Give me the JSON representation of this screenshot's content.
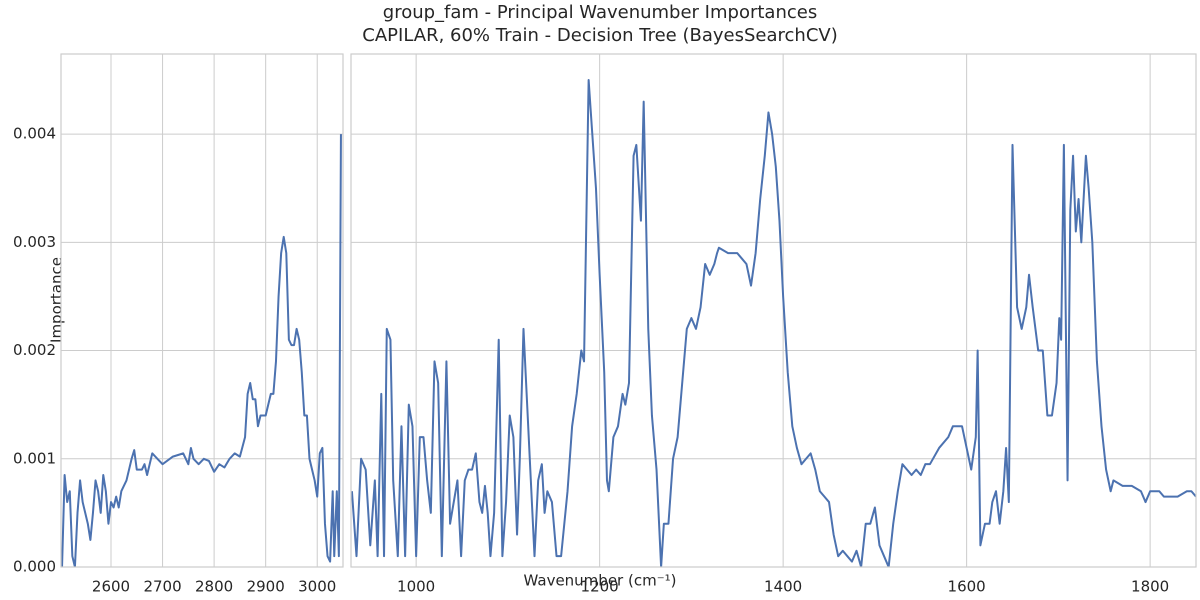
{
  "chart_data": [
    {
      "type": "line",
      "title": "group_fam - Principal Wavenumber Importances",
      "subtitle": "CAPILAR, 60% Train - Decision Tree (BayesSearchCV)",
      "y_label": "Importance",
      "xlim": [
        2503,
        3050
      ],
      "xticks": [
        2600,
        2700,
        2800,
        2900,
        3000
      ],
      "ylim": [
        0,
        0.00474
      ],
      "yticks": [
        {
          "value": 0,
          "label": "0.000"
        },
        0.001,
        0.002,
        0.003,
        0.004
      ],
      "grid": true,
      "series": [
        {
          "color": "#4c72b0",
          "x": [
            2505,
            2510,
            2515,
            2520,
            2525,
            2530,
            2535,
            2540,
            2545,
            2550,
            2555,
            2560,
            2565,
            2570,
            2575,
            2580,
            2585,
            2590,
            2595,
            2600,
            2605,
            2610,
            2615,
            2620,
            2630,
            2640,
            2645,
            2650,
            2660,
            2665,
            2670,
            2680,
            2690,
            2700,
            2720,
            2740,
            2750,
            2755,
            2760,
            2770,
            2780,
            2790,
            2800,
            2810,
            2820,
            2830,
            2840,
            2850,
            2860,
            2865,
            2870,
            2875,
            2880,
            2885,
            2890,
            2900,
            2910,
            2915,
            2920,
            2925,
            2930,
            2935,
            2940,
            2945,
            2950,
            2955,
            2960,
            2965,
            2970,
            2975,
            2980,
            2985,
            2990,
            2995,
            3000,
            3005,
            3010,
            3015,
            3020,
            3025,
            3030,
            3033,
            3038,
            3042,
            3046
          ],
          "values": [
            0,
            0.00085,
            0.0006,
            0.0007,
            0.0001,
            0,
            0.0005,
            0.0008,
            0.0006,
            0.0005,
            0.0004,
            0.00025,
            0.0005,
            0.0008,
            0.0007,
            0.0005,
            0.00085,
            0.0007,
            0.0004,
            0.0006,
            0.00055,
            0.00065,
            0.00055,
            0.0007,
            0.0008,
            0.001,
            0.00108,
            0.0009,
            0.0009,
            0.00095,
            0.00085,
            0.00105,
            0.001,
            0.00095,
            0.00102,
            0.00105,
            0.00095,
            0.0011,
            0.001,
            0.00095,
            0.001,
            0.00098,
            0.00088,
            0.00095,
            0.00092,
            0.001,
            0.00105,
            0.00102,
            0.0012,
            0.0016,
            0.0017,
            0.00155,
            0.00155,
            0.0013,
            0.0014,
            0.0014,
            0.0016,
            0.0016,
            0.0019,
            0.0025,
            0.0029,
            0.00305,
            0.0029,
            0.0021,
            0.00205,
            0.00205,
            0.0022,
            0.0021,
            0.0018,
            0.0014,
            0.0014,
            0.001,
            0.0009,
            0.0008,
            0.00065,
            0.00105,
            0.0011,
            0.0004,
            0.0001,
            5e-05,
            0.0007,
            0.0001,
            0.0007,
            0.0001,
            0.004
          ]
        }
      ]
    },
    {
      "type": "line",
      "x_label": "Wavenumber (cm⁻¹)",
      "xlim": [
        929,
        1850
      ],
      "xticks": [
        1000,
        1200,
        1400,
        1600,
        1800
      ],
      "ylim": [
        0,
        0.00474
      ],
      "grid": true,
      "series": [
        {
          "color": "#4c72b0",
          "x": [
            930,
            935,
            940,
            945,
            950,
            955,
            958,
            962,
            965,
            968,
            972,
            975,
            980,
            984,
            988,
            992,
            996,
            1000,
            1004,
            1008,
            1012,
            1016,
            1020,
            1024,
            1028,
            1033,
            1037,
            1041,
            1045,
            1049,
            1053,
            1057,
            1061,
            1065,
            1069,
            1072,
            1075,
            1078,
            1081,
            1085,
            1090,
            1094,
            1098,
            1102,
            1106,
            1110,
            1113,
            1117,
            1121,
            1125,
            1129,
            1133,
            1137,
            1140,
            1143,
            1148,
            1153,
            1158,
            1165,
            1170,
            1175,
            1180,
            1183,
            1188,
            1192,
            1196,
            1200,
            1205,
            1208,
            1210,
            1215,
            1220,
            1225,
            1228,
            1232,
            1237,
            1240,
            1245,
            1248,
            1253,
            1257,
            1262,
            1267,
            1270,
            1275,
            1280,
            1285,
            1290,
            1295,
            1300,
            1305,
            1310,
            1315,
            1320,
            1325,
            1328,
            1330,
            1340,
            1350,
            1355,
            1360,
            1365,
            1370,
            1375,
            1380,
            1384,
            1388,
            1392,
            1396,
            1400,
            1405,
            1410,
            1415,
            1420,
            1425,
            1430,
            1435,
            1440,
            1445,
            1450,
            1455,
            1460,
            1465,
            1470,
            1475,
            1480,
            1485,
            1490,
            1495,
            1500,
            1505,
            1510,
            1515,
            1520,
            1525,
            1530,
            1535,
            1540,
            1545,
            1550,
            1555,
            1560,
            1570,
            1580,
            1585,
            1590,
            1595,
            1600,
            1605,
            1610,
            1612,
            1615,
            1620,
            1625,
            1628,
            1632,
            1636,
            1640,
            1643,
            1646,
            1650,
            1655,
            1660,
            1665,
            1668,
            1672,
            1678,
            1683,
            1688,
            1693,
            1698,
            1701,
            1703,
            1706,
            1710,
            1713,
            1716,
            1719,
            1722,
            1725,
            1730,
            1733,
            1737,
            1742,
            1747,
            1752,
            1757,
            1760,
            1770,
            1780,
            1790,
            1795,
            1800,
            1805,
            1810,
            1815,
            1820,
            1830,
            1840,
            1845,
            1850
          ],
          "values": [
            0.0007,
            0.0001,
            0.001,
            0.0009,
            0.0002,
            0.0008,
            0.0001,
            0.0016,
            0.0001,
            0.0022,
            0.0021,
            0.0008,
            0.0001,
            0.0013,
            0.0001,
            0.0015,
            0.0013,
            0.0001,
            0.0012,
            0.0012,
            0.0008,
            0.0005,
            0.0019,
            0.0017,
            0.0001,
            0.0019,
            0.0004,
            0.0006,
            0.0008,
            0.0001,
            0.0008,
            0.0009,
            0.0009,
            0.00105,
            0.0006,
            0.0005,
            0.00075,
            0.0005,
            0.0001,
            0.0005,
            0.0021,
            0.0001,
            0.0006,
            0.0014,
            0.0012,
            0.0003,
            0.001,
            0.0022,
            0.0015,
            0.0008,
            0.0001,
            0.0008,
            0.00095,
            0.0005,
            0.0007,
            0.0006,
            0.0001,
            0.0001,
            0.0007,
            0.0013,
            0.0016,
            0.002,
            0.0019,
            0.0045,
            0.004,
            0.0035,
            0.0027,
            0.0018,
            0.0008,
            0.0007,
            0.0012,
            0.0013,
            0.0016,
            0.0015,
            0.0017,
            0.0038,
            0.0039,
            0.0032,
            0.0043,
            0.0022,
            0.0014,
            0.0009,
            0,
            0.0004,
            0.0004,
            0.001,
            0.0012,
            0.0017,
            0.0022,
            0.0023,
            0.0022,
            0.0024,
            0.0028,
            0.0027,
            0.0028,
            0.0029,
            0.00295,
            0.0029,
            0.0029,
            0.00285,
            0.0028,
            0.0026,
            0.0029,
            0.0034,
            0.0038,
            0.0042,
            0.004,
            0.0037,
            0.0032,
            0.0025,
            0.0018,
            0.0013,
            0.0011,
            0.00095,
            0.001,
            0.00105,
            0.0009,
            0.0007,
            0.00065,
            0.0006,
            0.0003,
            0.0001,
            0.00015,
            0.0001,
            5e-05,
            0.00015,
            0,
            0.0004,
            0.0004,
            0.00055,
            0.0002,
            0.0001,
            0,
            0.0004,
            0.0007,
            0.00095,
            0.0009,
            0.00085,
            0.0009,
            0.00085,
            0.00095,
            0.00095,
            0.0011,
            0.0012,
            0.0013,
            0.0013,
            0.0013,
            0.0011,
            0.0009,
            0.0012,
            0.002,
            0.0002,
            0.0004,
            0.0004,
            0.0006,
            0.0007,
            0.0004,
            0.0007,
            0.0011,
            0.0006,
            0.0039,
            0.0024,
            0.0022,
            0.0024,
            0.0027,
            0.0024,
            0.002,
            0.002,
            0.0014,
            0.0014,
            0.0017,
            0.0023,
            0.0021,
            0.0039,
            0.0008,
            0.0033,
            0.0038,
            0.0031,
            0.0034,
            0.003,
            0.0038,
            0.0035,
            0.003,
            0.0019,
            0.0013,
            0.0009,
            0.0007,
            0.0008,
            0.00075,
            0.00075,
            0.0007,
            0.0006,
            0.0007,
            0.0007,
            0.0007,
            0.00065,
            0.00065,
            0.00065,
            0.0007,
            0.0007,
            0.00065
          ]
        }
      ]
    }
  ]
}
